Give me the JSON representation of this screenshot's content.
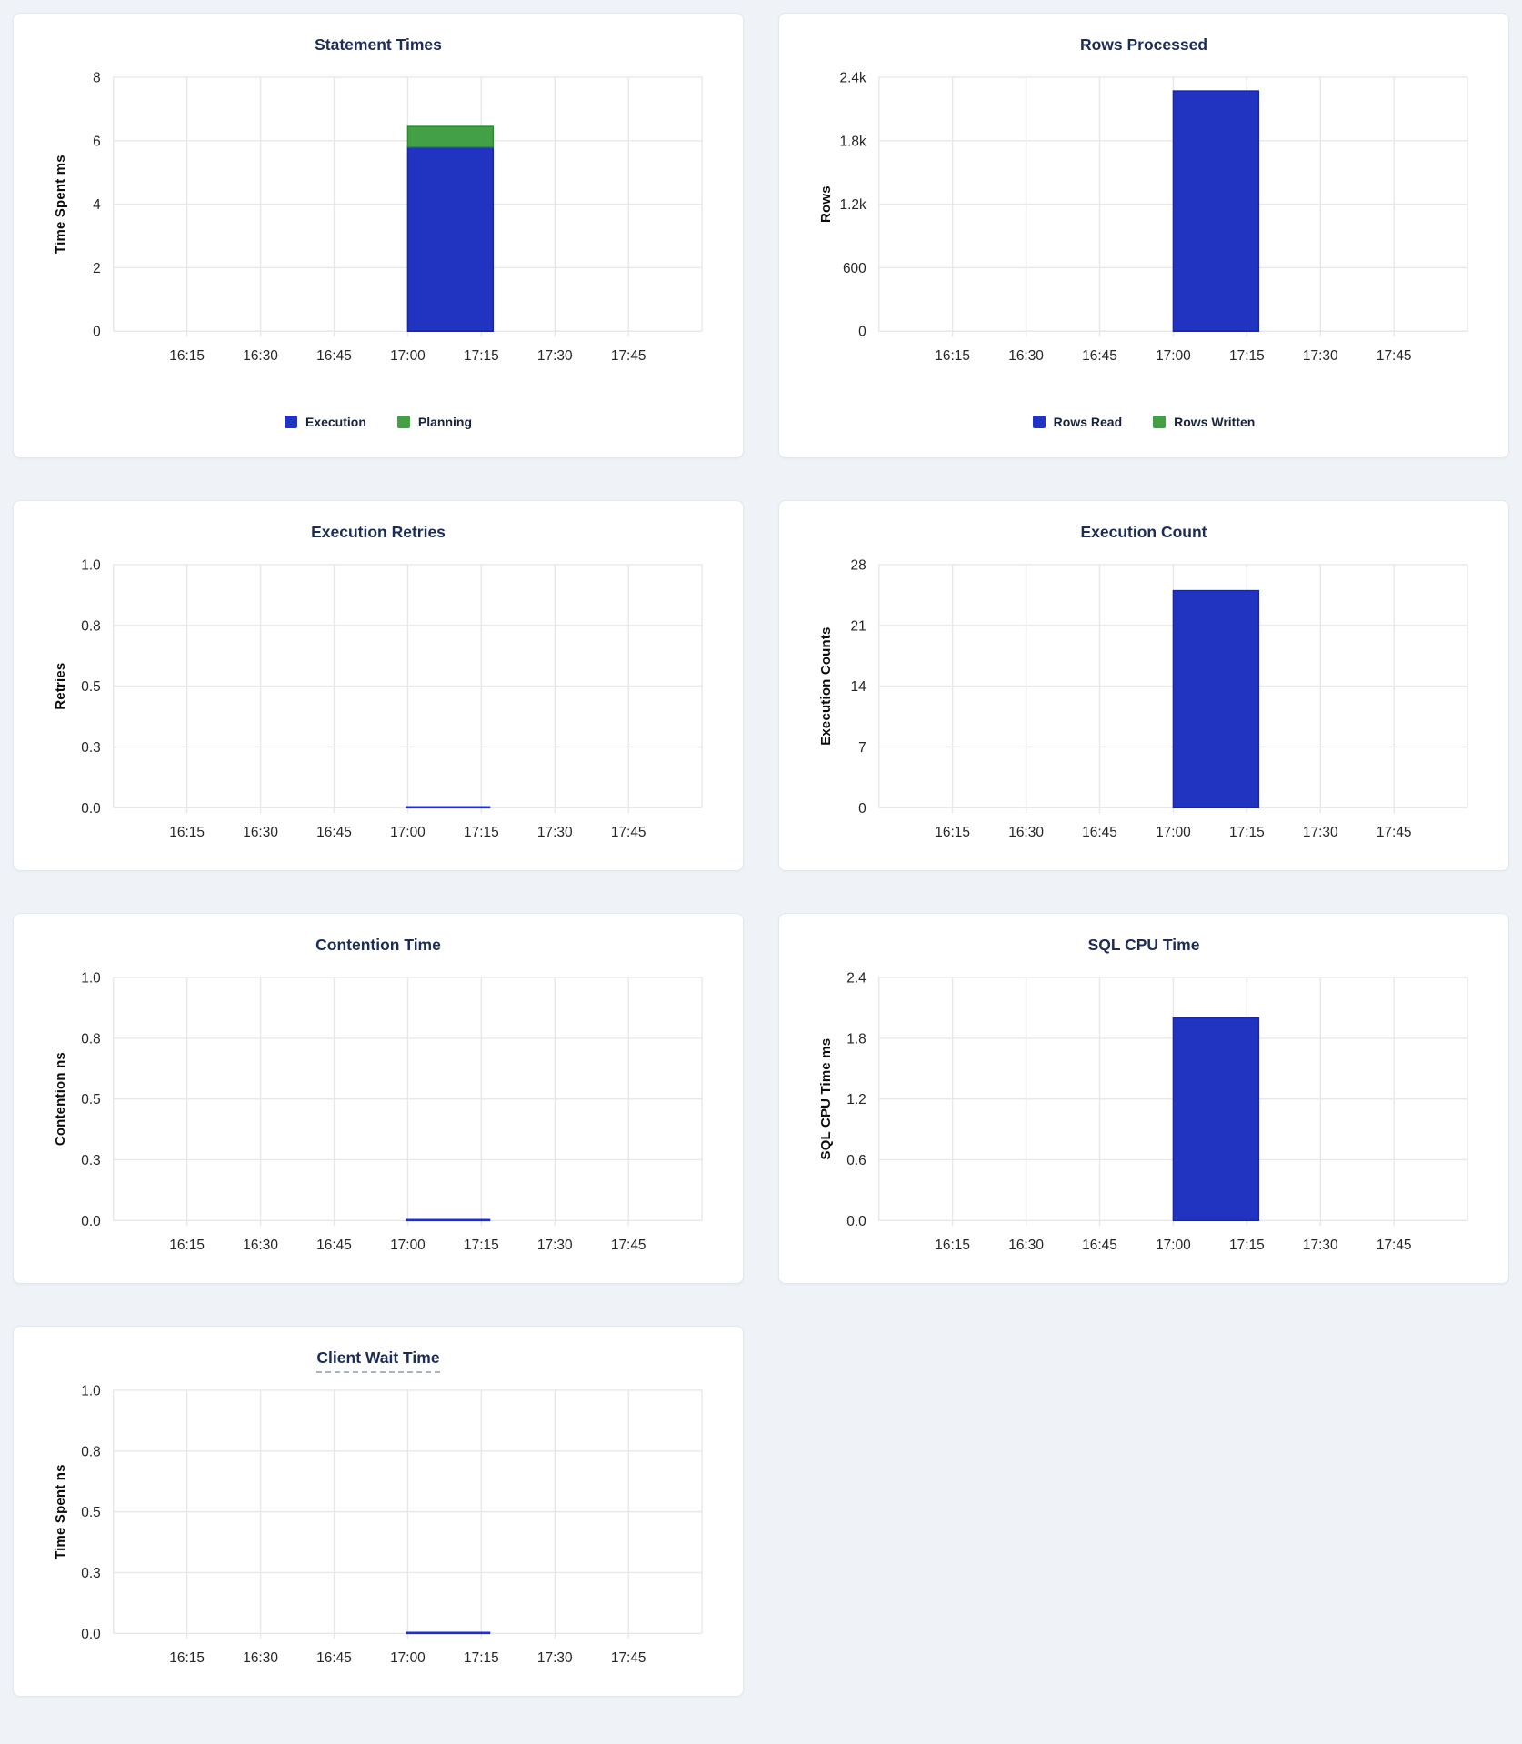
{
  "page": {
    "background": "#eff3f7"
  },
  "colors": {
    "blue": "#2134c1",
    "blueBorder": "#1927a3",
    "green": "#44a046",
    "greenBorder": "#2f8a34",
    "line": "#2230be",
    "grid": "#e8e8e8",
    "title": "#1e2c55",
    "tick": "#262626"
  },
  "chart_data": {
    "type": "bar",
    "x_axis": {
      "tick_labels": [
        "16:15",
        "16:30",
        "16:45",
        "17:00",
        "17:15",
        "17:30",
        "17:45"
      ],
      "range": [
        "16:00",
        "18:00"
      ],
      "minutes_per_tick": 15
    },
    "data_bucket": {
      "start": "17:00",
      "end": "17:15"
    },
    "charts": [
      {
        "title": "Statement Times",
        "type": "bar",
        "layout": "tall",
        "ylabel": "Time Spent ms",
        "ytick_labels": [
          "0",
          "2",
          "4",
          "6",
          "8"
        ],
        "ymax": 8,
        "grid": true,
        "series": [
          {
            "name": "Execution",
            "color_key": "blue",
            "value": 5.8
          },
          {
            "name": "Planning",
            "color_key": "green",
            "value": 0.65
          }
        ],
        "legend": [
          {
            "label": "Execution",
            "color_key": "blue"
          },
          {
            "label": "Planning",
            "color_key": "green"
          }
        ]
      },
      {
        "title": "Rows Processed",
        "type": "bar",
        "layout": "tall",
        "ylabel": "Rows",
        "ytick_labels": [
          "0",
          "600",
          "1.2k",
          "1.8k",
          "2.4k"
        ],
        "ymax": 2400,
        "grid": true,
        "series": [
          {
            "name": "Rows Read",
            "color_key": "blue",
            "value": 2270
          },
          {
            "name": "Rows Written",
            "color_key": "green",
            "value": 0
          }
        ],
        "legend": [
          {
            "label": "Rows Read",
            "color_key": "blue"
          },
          {
            "label": "Rows Written",
            "color_key": "green"
          }
        ]
      },
      {
        "title": "Execution Retries",
        "type": "line",
        "layout": "short",
        "ylabel": "Retries",
        "ytick_labels": [
          "0.0",
          "0.3",
          "0.5",
          "0.8",
          "1.0"
        ],
        "ymax": 1,
        "grid": true,
        "series": [
          {
            "color_key": "blue",
            "value": 0
          }
        ]
      },
      {
        "title": "Execution Count",
        "type": "bar",
        "layout": "short",
        "ylabel": "Execution Counts",
        "ytick_labels": [
          "0",
          "7",
          "14",
          "21",
          "28"
        ],
        "ymax": 28,
        "grid": true,
        "series": [
          {
            "color_key": "blue",
            "value": 25
          }
        ]
      },
      {
        "title": "Contention Time",
        "type": "line",
        "layout": "short",
        "ylabel": "Contention ns",
        "ytick_labels": [
          "0.0",
          "0.3",
          "0.5",
          "0.8",
          "1.0"
        ],
        "ymax": 1,
        "grid": true,
        "series": [
          {
            "color_key": "blue",
            "value": 0
          }
        ]
      },
      {
        "title": "SQL CPU Time",
        "type": "bar",
        "layout": "short",
        "ylabel": "SQL CPU Time ms",
        "ytick_labels": [
          "0.0",
          "0.6",
          "1.2",
          "1.8",
          "2.4"
        ],
        "ymax": 2.4,
        "grid": true,
        "series": [
          {
            "color_key": "blue",
            "value": 2.0
          }
        ]
      },
      {
        "title": "Client Wait Time",
        "title_underlined": true,
        "type": "line",
        "layout": "short",
        "ylabel": "Time Spent ns",
        "ytick_labels": [
          "0.0",
          "0.3",
          "0.5",
          "0.8",
          "1.0"
        ],
        "ymax": 1,
        "grid": true,
        "series": [
          {
            "color_key": "blue",
            "value": 0
          }
        ]
      }
    ]
  }
}
